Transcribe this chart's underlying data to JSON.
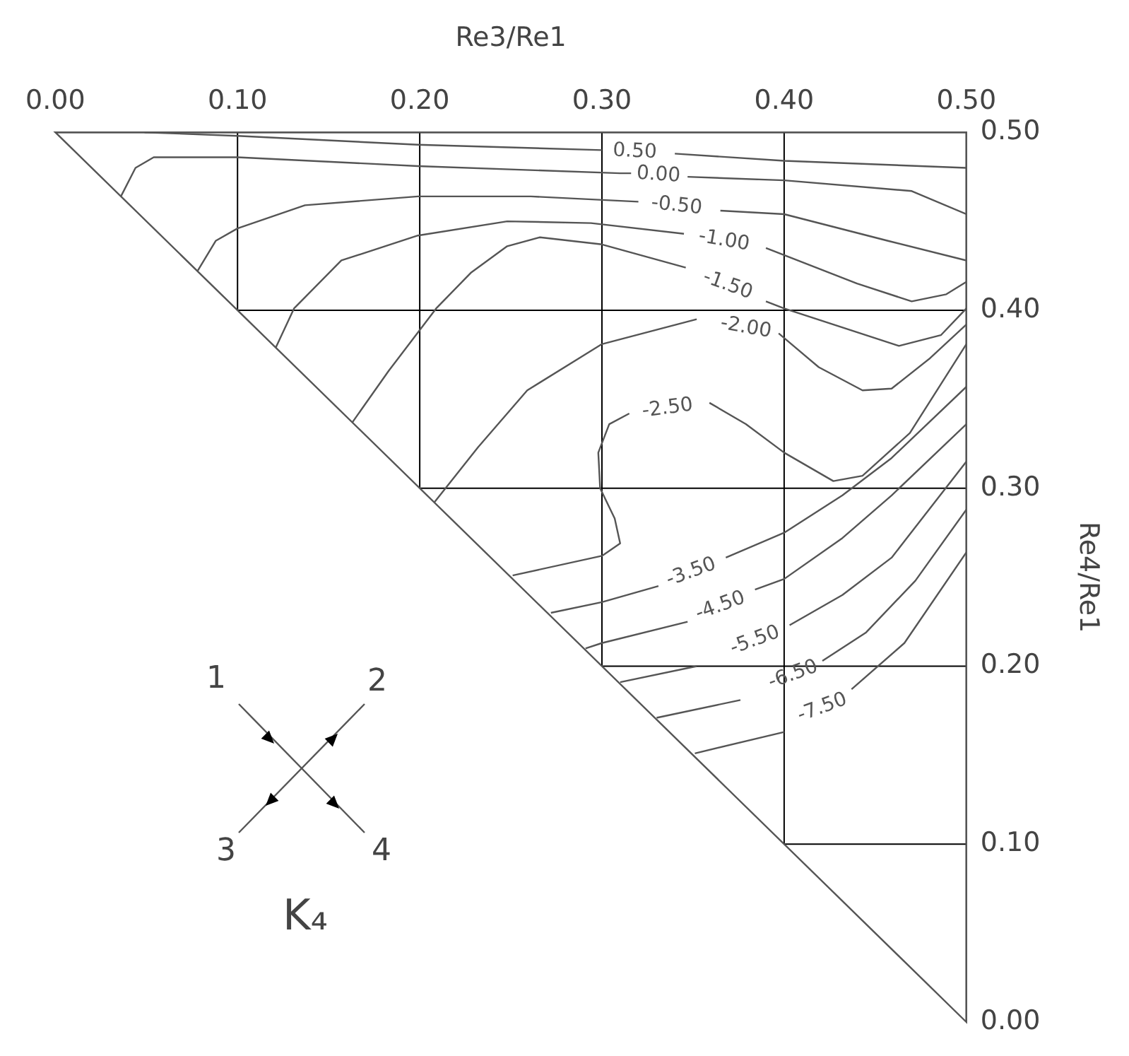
{
  "chart_data": {
    "type": "line",
    "xlabel": "Re3/Re1",
    "ylabel": "Re4/Re1",
    "xlim": [
      0,
      0.5
    ],
    "ylim": [
      0,
      0.5
    ],
    "xticks": [
      {
        "value": 0,
        "label": "0.00"
      },
      {
        "value": 0.1,
        "label": "0.10"
      },
      {
        "value": 0.2,
        "label": "0.20"
      },
      {
        "value": 0.3,
        "label": "0.30"
      },
      {
        "value": 0.4,
        "label": "0.40"
      },
      {
        "value": 0.5,
        "label": "0.50"
      }
    ],
    "yticks": [
      {
        "value": 0,
        "label": "0.00"
      },
      {
        "value": 0.1,
        "label": "0.10"
      },
      {
        "value": 0.2,
        "label": "0.20"
      },
      {
        "value": 0.3,
        "label": "0.30"
      },
      {
        "value": 0.4,
        "label": "0.40"
      },
      {
        "value": 0.5,
        "label": "0.50"
      }
    ],
    "grid": true,
    "marker": "none",
    "line_style": "solid",
    "series": [
      {
        "name": "0.50",
        "color": "#555555",
        "x": [
          0.049,
          0.1,
          0.199,
          0.3,
          0.318,
          0.34,
          0.4,
          0.5
        ],
        "values": [
          0.5,
          0.498,
          0.493,
          0.49,
          null,
          0.488,
          0.484,
          0.48
        ]
      },
      {
        "name": "0.00",
        "color": "#555555",
        "x": [
          0.036,
          0.044,
          0.054,
          0.1,
          0.199,
          0.31,
          0.316,
          0.331,
          0.347,
          0.4,
          0.47,
          0.5
        ],
        "values": [
          0.464,
          0.48,
          0.486,
          0.486,
          0.481,
          0.477,
          0.477,
          null,
          0.475,
          0.473,
          0.467,
          0.454
        ]
      },
      {
        "name": "-0.50",
        "color": "#555555",
        "x": [
          0.078,
          0.088,
          0.1,
          0.137,
          0.199,
          0.261,
          0.32,
          0.341,
          0.365,
          0.4,
          0.457,
          0.5
        ],
        "values": [
          0.422,
          0.439,
          0.446,
          0.459,
          0.464,
          0.464,
          0.461,
          null,
          0.456,
          0.454,
          0.439,
          0.428
        ]
      },
      {
        "name": "-1.00",
        "color": "#555555",
        "x": [
          0.121,
          0.131,
          0.157,
          0.199,
          0.248,
          0.294,
          0.345,
          0.367,
          0.39,
          0.44,
          0.47,
          0.489,
          0.5
        ],
        "values": [
          0.379,
          0.401,
          0.428,
          0.442,
          0.45,
          0.449,
          0.443,
          null,
          0.435,
          0.415,
          0.405,
          0.409,
          0.416
        ]
      },
      {
        "name": "-1.50",
        "color": "#555555",
        "x": [
          0.163,
          0.183,
          0.209,
          0.228,
          0.248,
          0.266,
          0.3,
          0.346,
          0.369,
          0.39,
          0.4,
          0.463,
          0.486,
          0.5
        ],
        "values": [
          0.337,
          0.366,
          0.401,
          0.421,
          0.436,
          0.441,
          0.437,
          0.424,
          null,
          0.405,
          0.401,
          0.38,
          0.386,
          0.401
        ]
      },
      {
        "name": "-2.00",
        "color": "#555555",
        "x": [
          0.208,
          0.232,
          0.259,
          0.3,
          0.352,
          0.379,
          0.397,
          0.419,
          0.443,
          0.459,
          0.48,
          0.5
        ],
        "values": [
          0.292,
          0.323,
          0.355,
          0.381,
          0.395,
          null,
          0.387,
          0.368,
          0.355,
          0.356,
          0.373,
          0.392
        ]
      },
      {
        "name": "-2.50",
        "color": "#555555",
        "x": [
          0.251,
          0.3,
          0.31,
          0.307,
          0.299,
          0.298,
          0.304,
          0.315,
          0.336,
          0.359,
          0.379,
          0.4,
          0.427,
          0.443,
          0.469,
          0.5
        ],
        "values": [
          0.251,
          0.262,
          0.269,
          0.283,
          0.3,
          0.32,
          0.336,
          0.342,
          null,
          0.348,
          0.336,
          0.32,
          0.304,
          0.307,
          0.331,
          0.381
        ]
      },
      {
        "name": "-3.50",
        "color": "#555555",
        "x": [
          0.272,
          0.3,
          0.331,
          0.349,
          0.368,
          0.4,
          0.432,
          0.459,
          0.5
        ],
        "values": [
          0.23,
          0.236,
          0.245,
          null,
          0.261,
          0.275,
          0.296,
          0.317,
          0.357
        ]
      },
      {
        "name": "-4.50",
        "color": "#555555",
        "x": [
          0.291,
          0.3,
          0.347,
          0.365,
          0.384,
          0.4,
          0.432,
          0.459,
          0.5
        ],
        "values": [
          0.21,
          0.213,
          0.225,
          null,
          0.243,
          0.249,
          0.272,
          0.296,
          0.336
        ]
      },
      {
        "name": "-5.50",
        "color": "#555555",
        "x": [
          0.31,
          0.352,
          0.384,
          0.403,
          0.432,
          0.459,
          0.5
        ],
        "values": [
          0.191,
          0.2,
          null,
          0.223,
          0.24,
          0.261,
          0.315
        ]
      },
      {
        "name": "-6.50",
        "color": "#555555",
        "x": [
          0.33,
          0.376,
          0.405,
          0.421,
          0.445,
          0.472,
          0.5
        ],
        "values": [
          0.171,
          0.181,
          null,
          0.203,
          0.219,
          0.248,
          0.288
        ]
      },
      {
        "name": "-7.50",
        "color": "#555555",
        "x": [
          0.351,
          0.4,
          0.421,
          0.437,
          0.466,
          0.5
        ],
        "values": [
          0.151,
          0.163,
          null,
          0.187,
          0.213,
          0.264
        ]
      }
    ],
    "annotations": [
      "1",
      "2",
      "3",
      "4",
      "K₄"
    ]
  }
}
